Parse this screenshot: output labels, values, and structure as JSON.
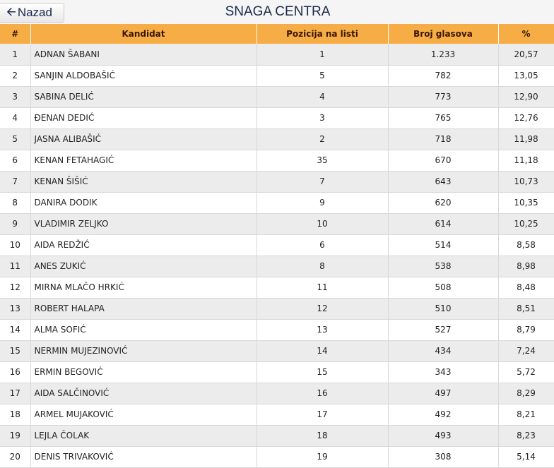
{
  "header": {
    "back_label": "Nazad",
    "title": "SNAGA CENTRA"
  },
  "table": {
    "columns": [
      "#",
      "Kandidat",
      "Pozicija na listi",
      "Broj glasova",
      "%"
    ],
    "rows": [
      [
        "1",
        "ADNAN ŠABANI",
        "1",
        "1.233",
        "20,57"
      ],
      [
        "2",
        "SANJIN ALDOBAŠIĆ",
        "5",
        "782",
        "13,05"
      ],
      [
        "3",
        "SABINA DELIĆ",
        "4",
        "773",
        "12,90"
      ],
      [
        "4",
        "ĐENAN DEDIĆ",
        "3",
        "765",
        "12,76"
      ],
      [
        "5",
        "JASNA ALIBAŠIĆ",
        "2",
        "718",
        "11,98"
      ],
      [
        "6",
        "KENAN FETAHAGIĆ",
        "35",
        "670",
        "11,18"
      ],
      [
        "7",
        "KENAN ŠIŠIĆ",
        "7",
        "643",
        "10,73"
      ],
      [
        "8",
        "DANIRA DODIK",
        "9",
        "620",
        "10,35"
      ],
      [
        "9",
        "VLADIMIR ZELJKO",
        "10",
        "614",
        "10,25"
      ],
      [
        "10",
        "AIDA REDŽIĆ",
        "6",
        "514",
        "8,58"
      ],
      [
        "11",
        "ANES ZUKIĆ",
        "8",
        "538",
        "8,98"
      ],
      [
        "12",
        "MIRNA MLAČO HRKIĆ",
        "11",
        "508",
        "8,48"
      ],
      [
        "13",
        "ROBERT HALAPA",
        "12",
        "510",
        "8,51"
      ],
      [
        "14",
        "ALMA SOFIĆ",
        "13",
        "527",
        "8,79"
      ],
      [
        "15",
        "NERMIN MUJEZINOVIĆ",
        "14",
        "434",
        "7,24"
      ],
      [
        "16",
        "ERMIN BEGOVIĆ",
        "15",
        "343",
        "5,72"
      ],
      [
        "17",
        "AIDA SALČINOVIĆ",
        "16",
        "497",
        "8,29"
      ],
      [
        "18",
        "ARMEL MUJAKOVIĆ",
        "17",
        "492",
        "8,21"
      ],
      [
        "19",
        "LEJLA ČOLAK",
        "18",
        "493",
        "8,23"
      ],
      [
        "20",
        "DENIS TRIVAKOVIĆ",
        "19",
        "308",
        "5,14"
      ]
    ]
  }
}
